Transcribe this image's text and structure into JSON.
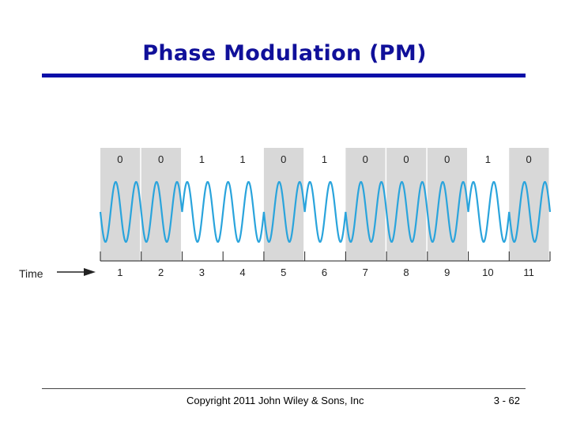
{
  "slide": {
    "title": "Phase Modulation (PM)",
    "copyright": "Copyright 2011 John Wiley & Sons, Inc",
    "page_number": "3 - 62"
  },
  "diagram": {
    "time_label": "Time",
    "bits": [
      "0",
      "0",
      "1",
      "1",
      "0",
      "1",
      "0",
      "0",
      "0",
      "1",
      "0"
    ],
    "periods": [
      "1",
      "2",
      "3",
      "4",
      "5",
      "6",
      "7",
      "8",
      "9",
      "10",
      "11"
    ],
    "colors": {
      "wave": "#2aa4dc",
      "zero_bg": "#d8d8d8",
      "one_bg": "#ffffff",
      "text": "#222222",
      "title": "#10109a"
    }
  }
}
